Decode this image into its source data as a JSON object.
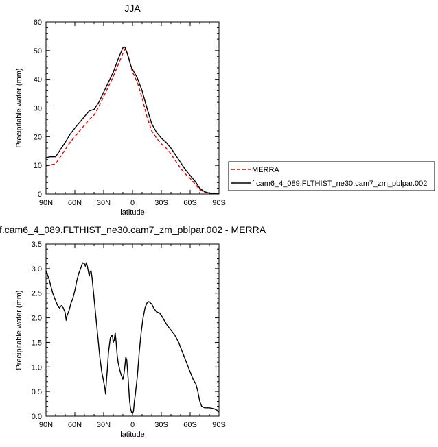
{
  "chart_data": [
    {
      "type": "line",
      "title": "JJA",
      "xlabel": "latitude",
      "ylabel": "Precipitable water (mm)",
      "xlim": [
        90,
        -90
      ],
      "ylim": [
        0,
        60
      ],
      "x_ticks": [
        90,
        60,
        30,
        0,
        -30,
        -60,
        -90
      ],
      "x_tick_labels": [
        "90N",
        "60N",
        "30N",
        "0",
        "30S",
        "60S",
        "90S"
      ],
      "y_ticks": [
        0,
        10,
        20,
        30,
        40,
        50,
        60
      ],
      "y_tick_labels": [
        "0",
        "10",
        "20",
        "30",
        "40",
        "50",
        "60"
      ],
      "legend_position": "right",
      "series": [
        {
          "name": "MERRA",
          "color": "#e00000",
          "dash": "dashed",
          "x": [
            90,
            85,
            80,
            75,
            70,
            65,
            60,
            55,
            50,
            45,
            40,
            35,
            30,
            25,
            20,
            15,
            10,
            8,
            5,
            2,
            0,
            -5,
            -10,
            -15,
            -20,
            -25,
            -30,
            -35,
            -40,
            -45,
            -50,
            -55,
            -60,
            -65,
            -70,
            -75,
            -80,
            -85,
            -90
          ],
          "y": [
            9.8,
            10.2,
            10.5,
            13,
            15.5,
            18,
            20,
            22,
            24,
            26,
            27.5,
            30.5,
            34,
            37.5,
            41,
            45,
            49,
            50.5,
            49,
            45,
            42.5,
            39,
            33.5,
            27,
            22,
            19.5,
            17.5,
            16,
            14,
            11.5,
            9,
            7,
            5.5,
            3.5,
            1.5,
            0.6,
            0.2,
            0.1,
            0
          ]
        },
        {
          "name": "f.cam6_4_089.FLTHIST_ne30.cam7_zm_pblpar.002",
          "color": "#000000",
          "dash": "solid",
          "x": [
            90,
            85,
            80,
            75,
            70,
            65,
            60,
            55,
            50,
            45,
            40,
            35,
            30,
            25,
            20,
            15,
            10,
            8,
            5,
            2,
            0,
            -5,
            -10,
            -15,
            -20,
            -25,
            -30,
            -35,
            -40,
            -45,
            -50,
            -55,
            -60,
            -65,
            -70,
            -75,
            -80,
            -85,
            -90
          ],
          "y": [
            12.7,
            13,
            13,
            15.5,
            18,
            20.8,
            23,
            25,
            27,
            29,
            29.5,
            32,
            35.5,
            39,
            42.5,
            47,
            51,
            51.3,
            48.5,
            45,
            43.5,
            40.5,
            36,
            30,
            24.5,
            21.5,
            19.5,
            18,
            16,
            13.5,
            11,
            8.5,
            6.5,
            4.5,
            2,
            0.8,
            0.3,
            0.1,
            0
          ]
        }
      ]
    },
    {
      "type": "line",
      "title": "f.cam6_4_089.FLTHIST_ne30.cam7_zm_pblpar.002 - MERRA",
      "xlabel": "latitude",
      "ylabel": "Precipitable water (mm)",
      "xlim": [
        90,
        -90
      ],
      "ylim": [
        0,
        3.5
      ],
      "x_ticks": [
        90,
        60,
        30,
        0,
        -30,
        -60,
        -90
      ],
      "x_tick_labels": [
        "90N",
        "60N",
        "30N",
        "0",
        "30S",
        "60S",
        "90S"
      ],
      "y_ticks": [
        0,
        0.5,
        1,
        1.5,
        2,
        2.5,
        3,
        3.5
      ],
      "y_tick_labels": [
        "0.0",
        "0.5",
        "1.0",
        "1.5",
        "2.0",
        "2.5",
        "3.0",
        "3.5"
      ],
      "series": [
        {
          "color": "#000000",
          "dash": "solid",
          "x": [
            90,
            87,
            85,
            83,
            80,
            78,
            76,
            74,
            72,
            70,
            69,
            68,
            66,
            64,
            62,
            60,
            58,
            56,
            54,
            52,
            50,
            49,
            48,
            47,
            46,
            45,
            44,
            43,
            42,
            41,
            40,
            38,
            36,
            34,
            32,
            31,
            30,
            29,
            28,
            27,
            26,
            25,
            23,
            21,
            20,
            19,
            18,
            17,
            16,
            15,
            14,
            12,
            11,
            10,
            9,
            8,
            7,
            6,
            5,
            4,
            3,
            2,
            1,
            0,
            -1,
            -2,
            -3,
            -5,
            -7,
            -9,
            -11,
            -13,
            -15,
            -17,
            -20,
            -22,
            -25,
            -28,
            -30,
            -33,
            -36,
            -40,
            -44,
            -48,
            -52,
            -56,
            -60,
            -63,
            -66,
            -68,
            -70,
            -72,
            -75,
            -80,
            -85,
            -88,
            -90
          ],
          "y": [
            2.95,
            2.8,
            2.65,
            2.5,
            2.35,
            2.25,
            2.2,
            2.25,
            2.2,
            2.1,
            1.95,
            2.05,
            2.15,
            2.3,
            2.4,
            2.55,
            2.75,
            2.9,
            3.0,
            3.12,
            3.1,
            3.05,
            3.12,
            3.05,
            2.95,
            2.85,
            2.95,
            2.95,
            2.8,
            2.6,
            2.4,
            2.0,
            1.6,
            1.2,
            0.9,
            0.8,
            0.7,
            0.6,
            0.45,
            0.75,
            1.0,
            1.3,
            1.6,
            1.65,
            1.5,
            1.55,
            1.7,
            1.5,
            1.25,
            1.1,
            1.0,
            0.85,
            0.8,
            0.75,
            0.85,
            1.0,
            1.2,
            1.15,
            0.9,
            0.6,
            0.3,
            0.15,
            0.08,
            0.05,
            0.1,
            0.3,
            0.45,
            0.8,
            1.3,
            1.7,
            2.0,
            2.2,
            2.3,
            2.33,
            2.28,
            2.2,
            2.12,
            2.1,
            2.05,
            1.95,
            1.85,
            1.75,
            1.65,
            1.5,
            1.3,
            1.1,
            0.9,
            0.75,
            0.65,
            0.5,
            0.3,
            0.2,
            0.17,
            0.17,
            0.15,
            0.12,
            0.08
          ]
        }
      ]
    }
  ]
}
